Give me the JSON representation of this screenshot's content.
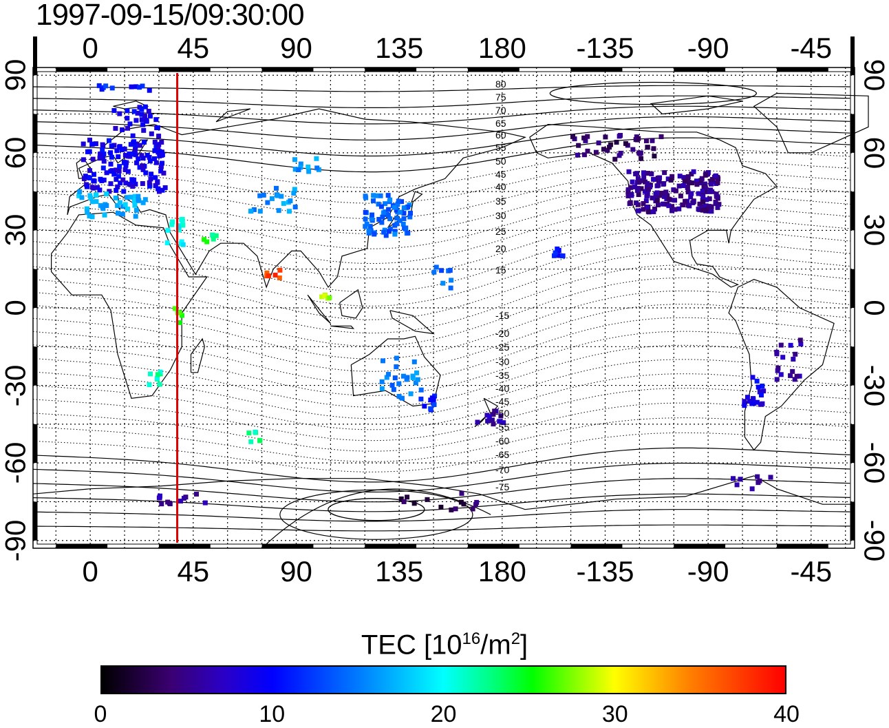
{
  "timestamp": "1997-09-15/09:30:00",
  "lon_ticks": [
    {
      "lon": 0,
      "label": "0"
    },
    {
      "lon": 45,
      "label": "45"
    },
    {
      "lon": 90,
      "label": "90"
    },
    {
      "lon": 135,
      "label": "135"
    },
    {
      "lon": 180,
      "label": "180"
    },
    {
      "lon": 225,
      "label": "-135"
    },
    {
      "lon": 270,
      "label": "-90"
    },
    {
      "lon": 315,
      "label": "-45"
    }
  ],
  "lat_ticks": [
    {
      "lat": 90,
      "label": "90"
    },
    {
      "lat": 60,
      "label": "60"
    },
    {
      "lat": 30,
      "label": "30"
    },
    {
      "lat": 0,
      "label": "0"
    },
    {
      "lat": -30,
      "label": "-30"
    },
    {
      "lat": -60,
      "label": "-60"
    },
    {
      "lat": -90,
      "label": "-90"
    }
  ],
  "magnetic_contour_labels": [
    "80",
    "75",
    "70",
    "65",
    "60",
    "55",
    "50",
    "45",
    "40",
    "35",
    "30",
    "25",
    "20",
    "15",
    "-15",
    "-20",
    "-25",
    "-30",
    "-35",
    "-40",
    "-45",
    "-50",
    "-55",
    "-60",
    "-65",
    "-70",
    "-75"
  ],
  "colorbar": {
    "title": "TEC  [10",
    "exp1": "16",
    "unit": "/m",
    "exp2": "2",
    "close": "]",
    "min": 0,
    "max": 40,
    "ticks": [
      "0",
      "10",
      "20",
      "30",
      "40"
    ]
  },
  "map": {
    "lon_range": [
      -25,
      334
    ],
    "lat_range": [
      -93,
      93
    ],
    "meridian_line_lon": 38,
    "meridian_line_color": "#e00000"
  },
  "tec_clusters": [
    {
      "lon": 15,
      "lat": 55,
      "spread_lon": 18,
      "spread_lat": 10,
      "n": 140,
      "tec": 9
    },
    {
      "lon": 10,
      "lat": 40,
      "spread_lon": 15,
      "spread_lat": 5,
      "n": 40,
      "tec": 17
    },
    {
      "lon": 20,
      "lat": 72,
      "spread_lon": 10,
      "spread_lat": 6,
      "n": 30,
      "tec": 9
    },
    {
      "lon": 15,
      "lat": 85,
      "spread_lon": 12,
      "spread_lat": 1,
      "n": 10,
      "tec": 11
    },
    {
      "lon": 130,
      "lat": 36,
      "spread_lon": 10,
      "spread_lat": 8,
      "n": 70,
      "tec": 14
    },
    {
      "lon": 80,
      "lat": 42,
      "spread_lon": 10,
      "spread_lat": 5,
      "n": 20,
      "tec": 16
    },
    {
      "lon": 95,
      "lat": 55,
      "spread_lon": 6,
      "spread_lat": 3,
      "n": 10,
      "tec": 16
    },
    {
      "lon": 37,
      "lat": 30,
      "spread_lon": 4,
      "spread_lat": 6,
      "n": 14,
      "tec": 20
    },
    {
      "lon": 52,
      "lat": 27,
      "spread_lon": 4,
      "spread_lat": 2,
      "n": 6,
      "tec": 24
    },
    {
      "lon": 80,
      "lat": 14,
      "spread_lon": 3,
      "spread_lat": 3,
      "n": 6,
      "tec": 37
    },
    {
      "lon": 103,
      "lat": 3,
      "spread_lon": 2,
      "spread_lat": 2,
      "n": 5,
      "tec": 29
    },
    {
      "lon": 39,
      "lat": -3,
      "spread_lon": 2,
      "spread_lat": 3,
      "n": 6,
      "tec": 25
    },
    {
      "lon": 29,
      "lat": -27,
      "spread_lon": 4,
      "spread_lat": 3,
      "n": 8,
      "tec": 22
    },
    {
      "lon": 72,
      "lat": -50,
      "spread_lon": 3,
      "spread_lat": 2,
      "n": 6,
      "tec": 22
    },
    {
      "lon": 135,
      "lat": -27,
      "spread_lon": 10,
      "spread_lat": 8,
      "n": 24,
      "tec": 15
    },
    {
      "lon": 148,
      "lat": -38,
      "spread_lon": 4,
      "spread_lat": 4,
      "n": 10,
      "tec": 11
    },
    {
      "lon": 175,
      "lat": -42,
      "spread_lon": 6,
      "spread_lat": 3,
      "n": 12,
      "tec": 6
    },
    {
      "lon": 153,
      "lat": 12,
      "spread_lon": 6,
      "spread_lat": 6,
      "n": 8,
      "tec": 14
    },
    {
      "lon": 255,
      "lat": 45,
      "spread_lon": 20,
      "spread_lat": 8,
      "n": 180,
      "tec": 5
    },
    {
      "lon": 230,
      "lat": 62,
      "spread_lon": 20,
      "spread_lat": 5,
      "n": 40,
      "tec": 4
    },
    {
      "lon": 204,
      "lat": 21,
      "spread_lon": 3,
      "spread_lat": 2,
      "n": 8,
      "tec": 10
    },
    {
      "lon": 290,
      "lat": -32,
      "spread_lon": 6,
      "spread_lat": 6,
      "n": 18,
      "tec": 9
    },
    {
      "lon": 305,
      "lat": -20,
      "spread_lon": 6,
      "spread_lat": 8,
      "n": 18,
      "tec": 6
    },
    {
      "lon": 290,
      "lat": -68,
      "spread_lon": 10,
      "spread_lat": 3,
      "n": 8,
      "tec": 5
    },
    {
      "lon": 150,
      "lat": -75,
      "spread_lon": 20,
      "spread_lat": 4,
      "n": 14,
      "tec": 3
    },
    {
      "lon": 40,
      "lat": -74,
      "spread_lon": 14,
      "spread_lat": 2,
      "n": 12,
      "tec": 6
    }
  ]
}
